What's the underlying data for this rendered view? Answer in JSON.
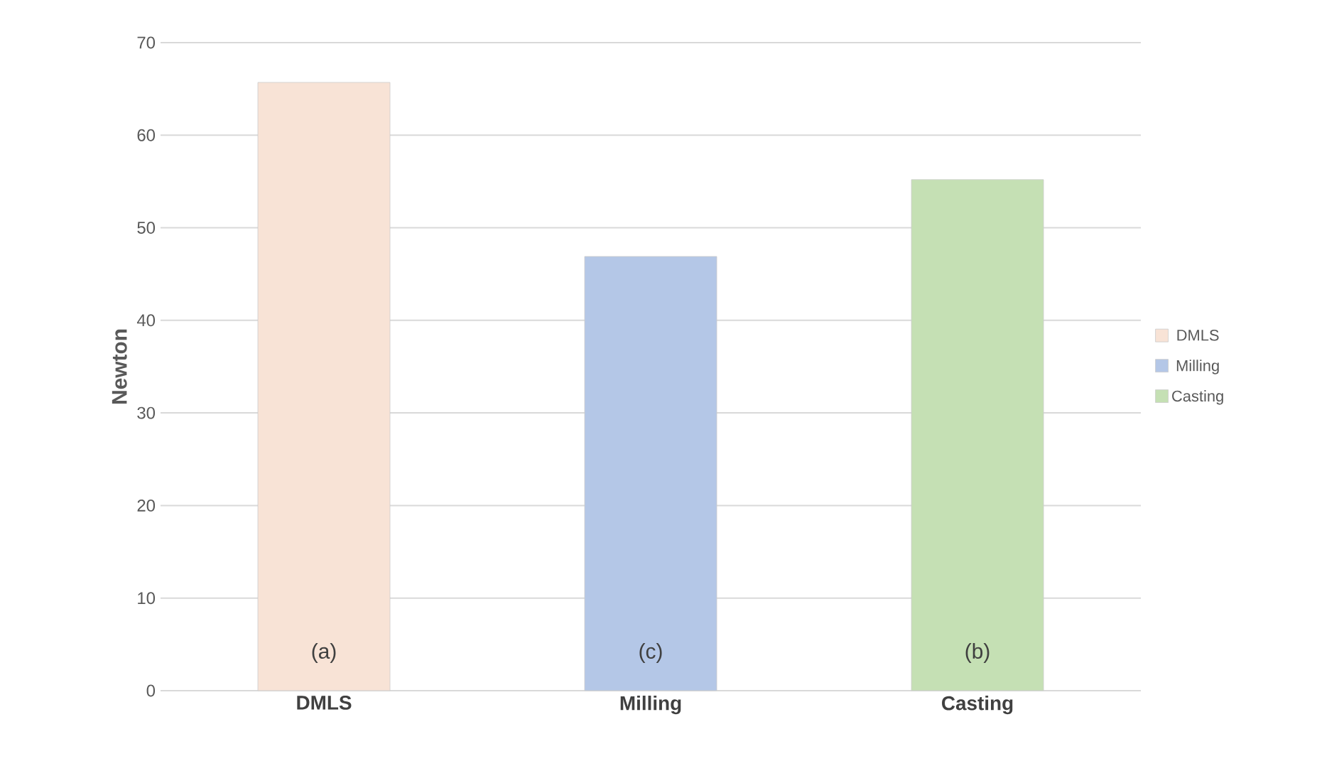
{
  "chart_data": {
    "type": "bar",
    "ylabel": "Newton",
    "categories": [
      "DMLS",
      "Milling",
      "Casting"
    ],
    "series": [
      {
        "name": "DMLS",
        "color": "#f8e3d6",
        "values": [
          65.7,
          null,
          null
        ]
      },
      {
        "name": "Milling",
        "color": "#b4c7e7",
        "values": [
          null,
          46.9,
          null
        ]
      },
      {
        "name": "Casting",
        "color": "#c5e0b4",
        "values": [
          null,
          null,
          55.2
        ]
      }
    ],
    "ylim": [
      0,
      70
    ],
    "yticks": [
      0,
      10,
      20,
      30,
      40,
      50,
      60,
      70
    ],
    "grid": "y",
    "legend": "right",
    "annotations": [
      "(a)",
      "(c)",
      "(b)"
    ]
  }
}
